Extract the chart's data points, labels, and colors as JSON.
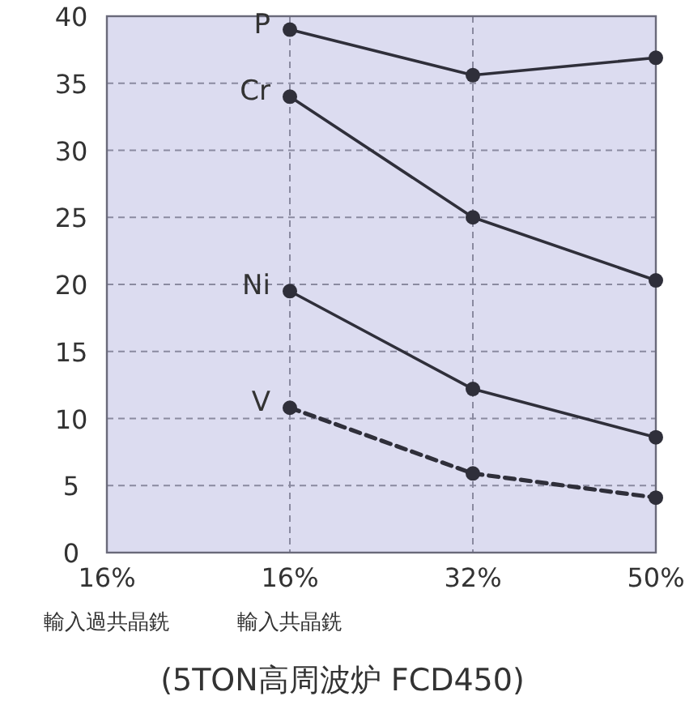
{
  "chart_data": {
    "type": "line",
    "categories": [
      "16%\n輸入過共晶銑",
      "16%\n輸入共晶銑",
      "32%",
      "50%"
    ],
    "xlabel": "(5TON高周波炉 FCD450)",
    "ylim": [
      0,
      40
    ],
    "yticks": [
      0,
      5,
      10,
      15,
      20,
      25,
      30,
      35,
      40
    ],
    "grid": true,
    "marker": "circle",
    "line_style": "solid",
    "series": [
      {
        "name": "P",
        "color": "#2f2f3a",
        "values": [
          null,
          39,
          35.6,
          36.9
        ]
      },
      {
        "name": "Cr",
        "color": "#2f2f3a",
        "values": [
          null,
          34,
          25,
          20.3
        ]
      },
      {
        "name": "Ni",
        "color": "#2f2f3a",
        "values": [
          null,
          19.5,
          12.2,
          8.6
        ]
      },
      {
        "name": "V",
        "color": "#2f2f3a",
        "line_style": "dashed",
        "values": [
          null,
          10.8,
          5.9,
          4.1
        ]
      }
    ]
  }
}
